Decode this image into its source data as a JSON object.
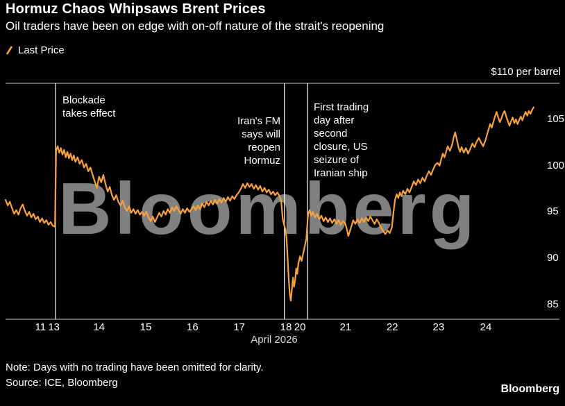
{
  "watermark": "Bloomberg",
  "colors": {
    "background": "#000000",
    "line": "#f9a13d",
    "event_line": "#eeeeee",
    "axis_line": "#d0d0d0",
    "text": "#ffffff"
  },
  "footer": {
    "note": "Note: Days with no trading have been omitted for clarity.",
    "source": "Source: ICE, Bloomberg",
    "logo": "Bloomberg"
  },
  "chart_data": {
    "type": "line",
    "title": "Hormuz Chaos Whipsaws Brent Prices",
    "subtitle": "Oil traders have been on edge with on-off nature of the strait's reopening",
    "y_axis_label": "$110 per barrel",
    "xlabel": "April 2026",
    "ylim": [
      83.4,
      108.9
    ],
    "yticks": [
      105,
      100,
      95,
      90,
      85
    ],
    "xticks": [
      {
        "label": "11",
        "x": 6.5
      },
      {
        "label": "13",
        "x": 9.0
      },
      {
        "label": "14",
        "x": 17.4
      },
      {
        "label": "15",
        "x": 26.1
      },
      {
        "label": "16",
        "x": 34.8
      },
      {
        "label": "17",
        "x": 43.5
      },
      {
        "label": "18",
        "x": 52.2
      },
      {
        "label": "20",
        "x": 54.8
      },
      {
        "label": "21",
        "x": 63.3
      },
      {
        "label": "22",
        "x": 72.0
      },
      {
        "label": "23",
        "x": 80.6
      },
      {
        "label": "24",
        "x": 89.4
      }
    ],
    "events": [
      {
        "x": 9.3,
        "label": "Blockade takes effect"
      },
      {
        "x": 51.9,
        "label": "Iran's FM says will reopen Hormuz"
      },
      {
        "x": 56.2,
        "label": "First trading day after second closure, US seizure of Iranian ship"
      }
    ],
    "annotations": [
      {
        "text": "Blockade\ntakes effect",
        "align": "left"
      },
      {
        "text": "Iran's FM\nsays will\nreopen\nHormuz",
        "align": "right"
      },
      {
        "text": "First trading\nday after\nsecond\nclosure, US\nseizure of\nIranian ship",
        "align": "left"
      }
    ],
    "series": [
      {
        "name": "Last Price",
        "color": "#f9a13d",
        "points": [
          [
            0,
            96.3
          ],
          [
            0.4,
            95.7
          ],
          [
            0.8,
            96.1
          ],
          [
            1.2,
            95.4
          ],
          [
            1.6,
            94.8
          ],
          [
            2.0,
            95.2
          ],
          [
            2.4,
            94.7
          ],
          [
            2.8,
            95.4
          ],
          [
            3.2,
            95.8
          ],
          [
            3.6,
            95.1
          ],
          [
            4.0,
            94.6
          ],
          [
            4.4,
            95.0
          ],
          [
            4.8,
            94.4
          ],
          [
            5.2,
            94.8
          ],
          [
            5.6,
            94.2
          ],
          [
            6.0,
            94.5
          ],
          [
            6.4,
            93.9
          ],
          [
            6.8,
            94.3
          ],
          [
            7.2,
            93.8
          ],
          [
            7.6,
            94.1
          ],
          [
            8.0,
            93.6
          ],
          [
            8.4,
            93.9
          ],
          [
            8.8,
            93.5
          ],
          [
            9.2,
            93.4
          ],
          [
            9.4,
            101.6
          ],
          [
            9.7,
            102.1
          ],
          [
            10.0,
            101.4
          ],
          [
            10.3,
            101.9
          ],
          [
            10.6,
            101.2
          ],
          [
            10.9,
            101.7
          ],
          [
            11.2,
            100.9
          ],
          [
            11.5,
            101.5
          ],
          [
            11.8,
            100.8
          ],
          [
            12.1,
            101.3
          ],
          [
            12.4,
            100.6
          ],
          [
            12.7,
            101.1
          ],
          [
            13.0,
            100.4
          ],
          [
            13.4,
            100.9
          ],
          [
            13.8,
            100.2
          ],
          [
            14.2,
            100.6
          ],
          [
            14.6,
            99.8
          ],
          [
            15.0,
            100.2
          ],
          [
            15.4,
            99.4
          ],
          [
            15.8,
            99.8
          ],
          [
            16.2,
            99.0
          ],
          [
            16.6,
            98.3
          ],
          [
            17.0,
            97.6
          ],
          [
            17.4,
            98.8
          ],
          [
            17.8,
            98.2
          ],
          [
            18.2,
            99.0
          ],
          [
            18.6,
            98.0
          ],
          [
            19.0,
            97.2
          ],
          [
            19.4,
            97.7
          ],
          [
            19.8,
            96.8
          ],
          [
            20.2,
            96.3
          ],
          [
            20.6,
            96.8
          ],
          [
            21.0,
            96.1
          ],
          [
            21.4,
            95.7
          ],
          [
            21.8,
            96.2
          ],
          [
            22.2,
            95.5
          ],
          [
            22.6,
            95.1
          ],
          [
            23.0,
            95.6
          ],
          [
            23.4,
            94.9
          ],
          [
            23.8,
            95.3
          ],
          [
            24.2,
            94.8
          ],
          [
            24.6,
            95.2
          ],
          [
            25.0,
            94.7
          ],
          [
            25.4,
            95.0
          ],
          [
            25.8,
            94.6
          ],
          [
            26.2,
            95.0
          ],
          [
            26.6,
            94.4
          ],
          [
            27.0,
            94.0
          ],
          [
            27.4,
            94.5
          ],
          [
            27.8,
            93.9
          ],
          [
            28.2,
            94.4
          ],
          [
            28.6,
            94.9
          ],
          [
            29.0,
            94.5
          ],
          [
            29.4,
            95.1
          ],
          [
            29.8,
            94.7
          ],
          [
            30.2,
            95.3
          ],
          [
            30.6,
            94.9
          ],
          [
            31.0,
            95.5
          ],
          [
            31.4,
            95.1
          ],
          [
            31.8,
            95.6
          ],
          [
            32.2,
            95.2
          ],
          [
            32.6,
            94.8
          ],
          [
            33.0,
            95.3
          ],
          [
            33.4,
            94.9
          ],
          [
            33.8,
            95.4
          ],
          [
            34.2,
            95.0
          ],
          [
            34.6,
            95.3
          ],
          [
            35.0,
            95.6
          ],
          [
            35.4,
            95.2
          ],
          [
            35.8,
            95.7
          ],
          [
            36.2,
            95.3
          ],
          [
            36.6,
            95.9
          ],
          [
            37.0,
            95.5
          ],
          [
            37.4,
            96.1
          ],
          [
            37.8,
            95.7
          ],
          [
            38.2,
            96.2
          ],
          [
            38.6,
            95.8
          ],
          [
            39.0,
            96.3
          ],
          [
            39.4,
            95.9
          ],
          [
            39.8,
            96.4
          ],
          [
            40.2,
            96.0
          ],
          [
            40.6,
            96.5
          ],
          [
            41.0,
            96.1
          ],
          [
            41.4,
            96.6
          ],
          [
            41.8,
            96.2
          ],
          [
            42.2,
            96.7
          ],
          [
            42.6,
            96.4
          ],
          [
            43.0,
            96.8
          ],
          [
            43.4,
            97.1
          ],
          [
            43.8,
            97.5
          ],
          [
            44.2,
            98.0
          ],
          [
            44.6,
            97.6
          ],
          [
            45.0,
            98.1
          ],
          [
            45.4,
            97.7
          ],
          [
            45.8,
            98.0
          ],
          [
            46.2,
            97.5
          ],
          [
            46.6,
            97.9
          ],
          [
            47.0,
            97.4
          ],
          [
            47.4,
            97.8
          ],
          [
            47.8,
            97.2
          ],
          [
            48.2,
            97.6
          ],
          [
            48.6,
            97.1
          ],
          [
            49.0,
            97.4
          ],
          [
            49.4,
            96.9
          ],
          [
            49.8,
            97.2
          ],
          [
            50.2,
            96.8
          ],
          [
            50.6,
            97.1
          ],
          [
            51.0,
            96.7
          ],
          [
            51.3,
            96.2
          ],
          [
            51.6,
            94.2
          ],
          [
            51.85,
            93.6
          ],
          [
            52.1,
            93.1
          ],
          [
            52.3,
            92.2
          ],
          [
            52.5,
            90.0
          ],
          [
            52.7,
            87.8
          ],
          [
            52.9,
            86.2
          ],
          [
            53.1,
            85.4
          ],
          [
            53.3,
            86.6
          ],
          [
            53.5,
            87.9
          ],
          [
            53.7,
            86.9
          ],
          [
            53.9,
            87.6
          ],
          [
            54.1,
            88.9
          ],
          [
            54.3,
            88.3
          ],
          [
            54.5,
            89.4
          ],
          [
            54.8,
            90.2
          ],
          [
            55.1,
            89.7
          ],
          [
            55.4,
            90.5
          ],
          [
            55.7,
            91.3
          ],
          [
            56.0,
            92.1
          ],
          [
            56.3,
            94.7
          ],
          [
            56.6,
            95.2
          ],
          [
            56.9,
            94.6
          ],
          [
            57.2,
            95.0
          ],
          [
            57.6,
            94.4
          ],
          [
            58.0,
            94.8
          ],
          [
            58.4,
            94.2
          ],
          [
            58.8,
            94.6
          ],
          [
            59.2,
            94.0
          ],
          [
            59.6,
            94.4
          ],
          [
            60.0,
            93.9
          ],
          [
            60.4,
            94.3
          ],
          [
            60.8,
            93.8
          ],
          [
            61.2,
            94.2
          ],
          [
            61.6,
            93.7
          ],
          [
            62.0,
            94.1
          ],
          [
            62.4,
            93.6
          ],
          [
            62.8,
            94.0
          ],
          [
            63.2,
            93.8
          ],
          [
            63.5,
            93.2
          ],
          [
            63.8,
            92.4
          ],
          [
            64.1,
            92.9
          ],
          [
            64.4,
            93.5
          ],
          [
            64.7,
            94.1
          ],
          [
            65.1,
            93.7
          ],
          [
            65.5,
            94.2
          ],
          [
            65.9,
            93.8
          ],
          [
            66.3,
            94.3
          ],
          [
            66.7,
            93.9
          ],
          [
            67.1,
            94.4
          ],
          [
            67.5,
            94.0
          ],
          [
            67.9,
            94.5
          ],
          [
            68.3,
            94.1
          ],
          [
            68.7,
            93.7
          ],
          [
            69.1,
            94.2
          ],
          [
            69.5,
            93.8
          ],
          [
            69.9,
            93.3
          ],
          [
            70.3,
            92.9
          ],
          [
            70.7,
            92.6
          ],
          [
            71.1,
            93.0
          ],
          [
            71.5,
            92.7
          ],
          [
            71.9,
            93.3
          ],
          [
            72.2,
            94.9
          ],
          [
            72.5,
            96.3
          ],
          [
            72.8,
            96.9
          ],
          [
            73.1,
            96.5
          ],
          [
            73.4,
            97.1
          ],
          [
            73.7,
            96.7
          ],
          [
            74.0,
            97.3
          ],
          [
            74.4,
            96.9
          ],
          [
            74.8,
            97.5
          ],
          [
            75.2,
            97.1
          ],
          [
            75.6,
            97.7
          ],
          [
            76.0,
            98.3
          ],
          [
            76.4,
            97.9
          ],
          [
            76.8,
            98.5
          ],
          [
            77.2,
            98.1
          ],
          [
            77.6,
            98.7
          ],
          [
            78.0,
            98.3
          ],
          [
            78.4,
            98.9
          ],
          [
            78.8,
            99.4
          ],
          [
            79.2,
            99.0
          ],
          [
            79.6,
            99.6
          ],
          [
            80.0,
            100.1
          ],
          [
            80.4,
            100.3
          ],
          [
            80.8,
            100.0
          ],
          [
            81.1,
            100.7
          ],
          [
            81.4,
            101.3
          ],
          [
            81.7,
            100.9
          ],
          [
            82.0,
            101.5
          ],
          [
            82.3,
            102.1
          ],
          [
            82.7,
            101.6
          ],
          [
            83.1,
            102.2
          ],
          [
            83.4,
            103.0
          ],
          [
            83.7,
            103.6
          ],
          [
            84.0,
            102.8
          ],
          [
            84.3,
            102.0
          ],
          [
            84.6,
            101.5
          ],
          [
            84.9,
            102.0
          ],
          [
            85.3,
            101.4
          ],
          [
            85.7,
            101.9
          ],
          [
            86.1,
            101.3
          ],
          [
            86.5,
            101.8
          ],
          [
            86.9,
            102.4
          ],
          [
            87.3,
            102.0
          ],
          [
            87.7,
            102.6
          ],
          [
            88.1,
            103.0
          ],
          [
            88.5,
            102.5
          ],
          [
            88.9,
            102.1
          ],
          [
            89.3,
            102.7
          ],
          [
            89.6,
            103.3
          ],
          [
            89.9,
            103.9
          ],
          [
            90.2,
            104.5
          ],
          [
            90.5,
            104.1
          ],
          [
            90.8,
            104.7
          ],
          [
            91.1,
            105.3
          ],
          [
            91.4,
            105.8
          ],
          [
            91.7,
            105.2
          ],
          [
            92.0,
            104.7
          ],
          [
            92.3,
            105.1
          ],
          [
            92.6,
            105.6
          ],
          [
            92.9,
            105.9
          ],
          [
            93.2,
            105.3
          ],
          [
            93.5,
            104.8
          ],
          [
            93.8,
            104.3
          ],
          [
            94.1,
            104.8
          ],
          [
            94.4,
            105.2
          ],
          [
            94.7,
            104.6
          ],
          [
            95.0,
            105.0
          ],
          [
            95.3,
            104.5
          ],
          [
            95.6,
            104.9
          ],
          [
            95.9,
            105.3
          ],
          [
            96.2,
            104.9
          ],
          [
            96.5,
            105.4
          ],
          [
            96.8,
            105.8
          ],
          [
            97.1,
            105.4
          ],
          [
            97.4,
            105.9
          ],
          [
            97.7,
            105.6
          ],
          [
            98.0,
            106.0
          ],
          [
            98.3,
            106.3
          ]
        ]
      }
    ]
  }
}
